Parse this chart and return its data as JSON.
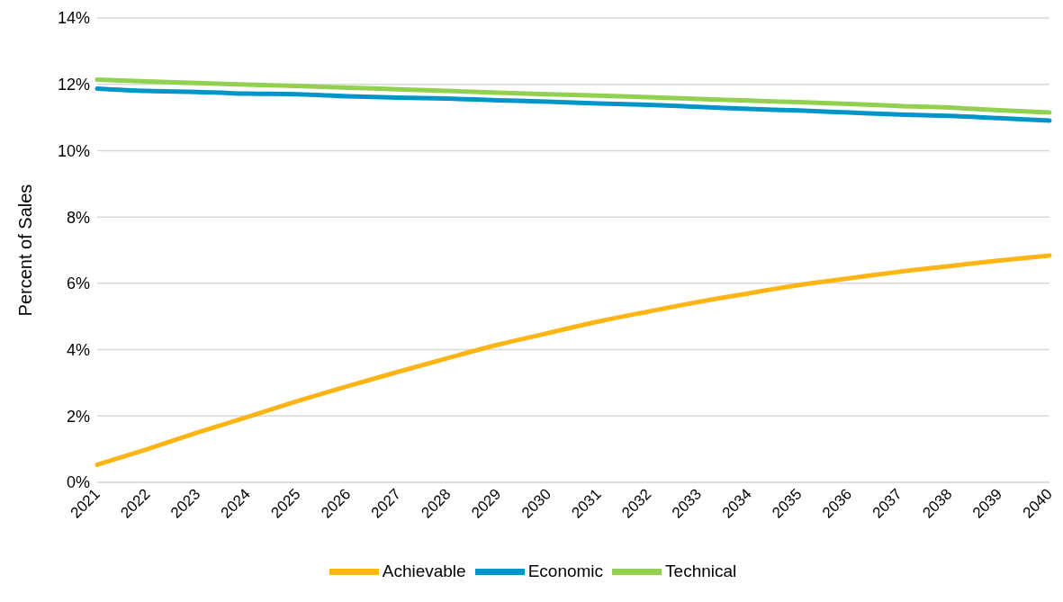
{
  "chart_data": {
    "type": "line",
    "ylabel": "Percent of Sales",
    "categories": [
      "2021",
      "2022",
      "2023",
      "2024",
      "2025",
      "2026",
      "2027",
      "2028",
      "2029",
      "2030",
      "2031",
      "2032",
      "2033",
      "2034",
      "2035",
      "2036",
      "2037",
      "2038",
      "2039",
      "2040"
    ],
    "series": [
      {
        "name": "Technical",
        "color": "#92d050",
        "values": [
          12.14,
          12.09,
          12.04,
          11.99,
          11.95,
          11.9,
          11.85,
          11.8,
          11.75,
          11.7,
          11.66,
          11.61,
          11.56,
          11.51,
          11.46,
          11.41,
          11.35,
          11.3,
          11.22,
          11.15
        ]
      },
      {
        "name": "Economic",
        "color": "#0095c8",
        "values": [
          11.87,
          11.8,
          11.77,
          11.72,
          11.7,
          11.64,
          11.6,
          11.57,
          11.52,
          11.48,
          11.42,
          11.38,
          11.32,
          11.26,
          11.21,
          11.15,
          11.09,
          11.05,
          10.98,
          10.91
        ]
      },
      {
        "name": "Achievable",
        "color": "#fdb515",
        "values": [
          0.53,
          1.0,
          1.5,
          1.97,
          2.45,
          2.9,
          3.33,
          3.75,
          4.15,
          4.5,
          4.85,
          5.15,
          5.44,
          5.7,
          5.95,
          6.15,
          6.35,
          6.52,
          6.69,
          6.84
        ]
      }
    ],
    "ylim": [
      0,
      14
    ],
    "yticks": [
      {
        "value": 0,
        "label": "0%"
      },
      {
        "value": 2,
        "label": "2%"
      },
      {
        "value": 4,
        "label": "4%"
      },
      {
        "value": 6,
        "label": "6%"
      },
      {
        "value": 8,
        "label": "8%"
      },
      {
        "value": 10,
        "label": "10%"
      },
      {
        "value": 12,
        "label": "12%"
      },
      {
        "value": 14,
        "label": "14%"
      }
    ],
    "grid": "y",
    "legend": "bottom",
    "marker": "none",
    "line_style": "solid"
  }
}
